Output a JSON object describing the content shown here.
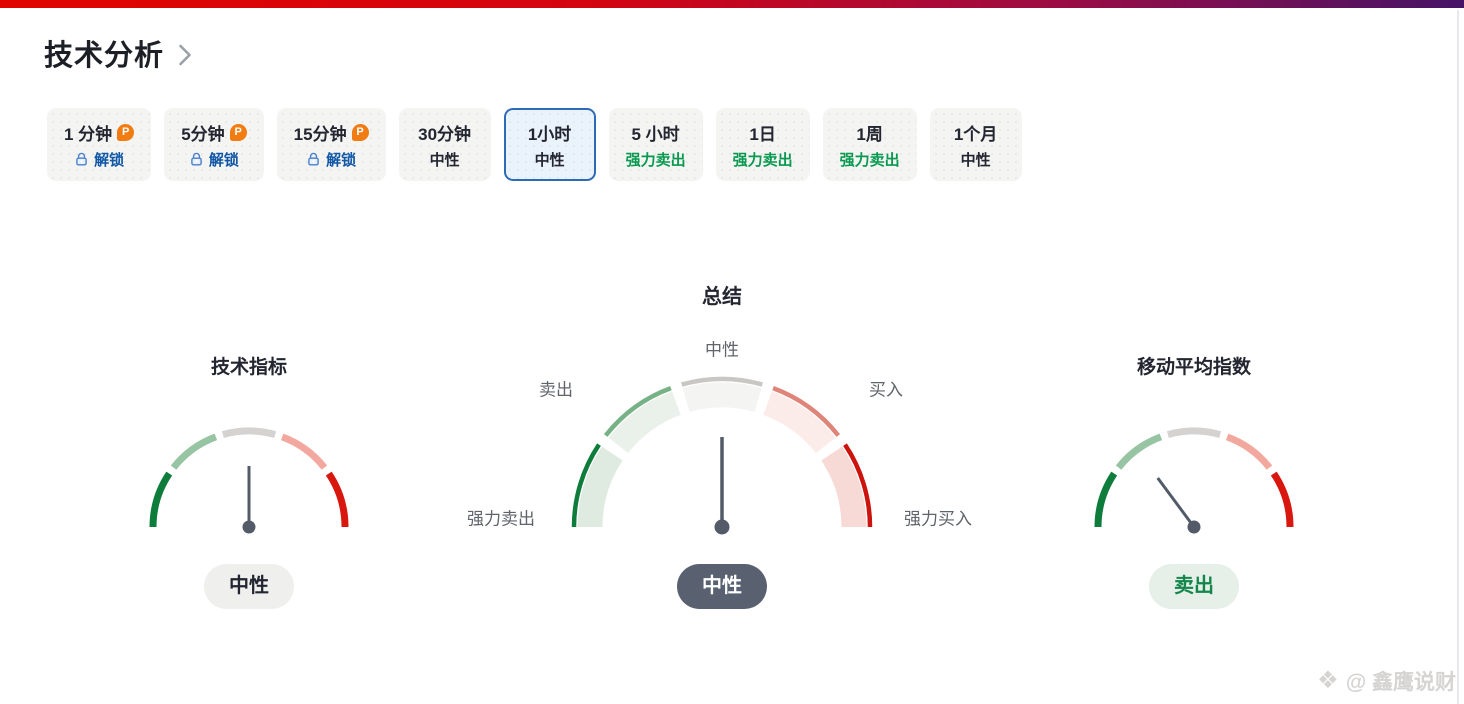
{
  "header": {
    "title": "技术分析"
  },
  "tabs": [
    {
      "label": "1 分钟",
      "pro": true,
      "locked": true,
      "action": "解锁"
    },
    {
      "label": "5分钟",
      "pro": true,
      "locked": true,
      "action": "解锁"
    },
    {
      "label": "15分钟",
      "pro": true,
      "locked": true,
      "action": "解锁"
    },
    {
      "label": "30分钟",
      "verdict": "中性",
      "verdict_type": "neutral"
    },
    {
      "label": "1小时",
      "verdict": "中性",
      "verdict_type": "neutral",
      "selected": true
    },
    {
      "label": "5 小时",
      "verdict": "强力卖出",
      "verdict_type": "strong-sell"
    },
    {
      "label": "1日",
      "verdict": "强力卖出",
      "verdict_type": "strong-sell"
    },
    {
      "label": "1周",
      "verdict": "强力卖出",
      "verdict_type": "strong-sell"
    },
    {
      "label": "1个月",
      "verdict": "中性",
      "verdict_type": "neutral"
    }
  ],
  "chart_data": [
    {
      "type": "gauge",
      "title": "技术指标",
      "verdict": "中性",
      "verdict_style": "neutral",
      "scale": [
        "强力卖出",
        "卖出",
        "中性",
        "买入",
        "强力买入"
      ],
      "scale_labels_visible": false,
      "needle_angle_deg": 0,
      "size": "small"
    },
    {
      "type": "gauge",
      "title": "总结",
      "verdict": "中性",
      "verdict_style": "neutral-dark",
      "scale": [
        "强力卖出",
        "卖出",
        "中性",
        "买入",
        "强力买入"
      ],
      "scale_labels_visible": true,
      "needle_angle_deg": 0,
      "size": "large"
    },
    {
      "type": "gauge",
      "title": "移动平均指数",
      "verdict": "卖出",
      "verdict_style": "sell",
      "scale": [
        "强力卖出",
        "卖出",
        "中性",
        "买入",
        "强力买入"
      ],
      "scale_labels_visible": false,
      "needle_angle_deg": -36.5,
      "size": "small"
    }
  ],
  "watermark": {
    "text": "@ 鑫鹰说财"
  },
  "icons": {
    "pro_badge": "P",
    "watermark_logo": "❖"
  },
  "colors": {
    "accent_gradient": [
      "#e00500",
      "#d40410",
      "#9c0c44",
      "#451367"
    ],
    "segment_stroke": [
      "#0e7d3c",
      "#97c4a2",
      "#d5d3d1",
      "#f3a89f",
      "#d8170f"
    ],
    "segment_stroke_mid": [
      "#0e7d3c",
      "#77b287",
      "#c9c7c4",
      "#df8478",
      "#cc130c"
    ],
    "segment_band_mid": [
      "#dfebe0",
      "#eaf1ea",
      "#f4f4f3",
      "#fcece9",
      "#f7dad6"
    ],
    "needle": "#535b69",
    "strong_sell_text": "#089950",
    "unlock_blue": "#1157a6",
    "lock_blue": "#4a80cc",
    "pro_orange": "#f07c12",
    "selected_border": "#2d6bb4",
    "selected_bg": "#eaf2fc",
    "tab_bg": "#f4f4f3",
    "pill_neutral_bg": "#efefee",
    "pill_neutral_dark_bg": "#596170",
    "pill_sell_bg": "#e6f0e9",
    "pill_sell_text": "#13864b",
    "text_dark": "#232630",
    "label_grey": "#60646b"
  }
}
